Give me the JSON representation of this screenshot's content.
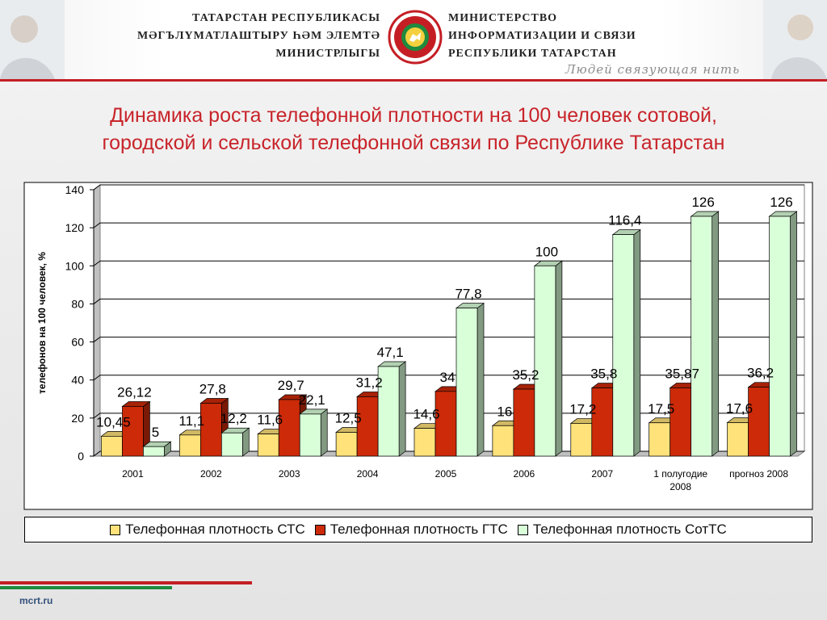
{
  "header": {
    "left_lines": [
      "ТАТАРСТАН РЕСПУБЛИКАСЫ",
      "МӘГЪЛҮМАТЛАШТЫРУ ҺӘМ  ЭЛЕМТӘ",
      "МИНИСТРЛЫГЫ"
    ],
    "right_lines": [
      "МИНИСТЕРСТВО",
      "ИНФОРМАТИЗАЦИИ И СВЯЗИ",
      "РЕСПУБЛИКИ ТАТАРСТАН"
    ],
    "slogan": "Людей связующая нить",
    "accent_color": "#c41e24"
  },
  "title": {
    "line1": "Динамика роста телефонной плотности на 100 человек сотовой,",
    "line2": "городской и сельской телефонной связи по Республике Татарстан"
  },
  "chart_data": {
    "type": "bar",
    "style": "3d-clustered",
    "categories": [
      "2001",
      "2002",
      "2003",
      "2004",
      "2005",
      "2006",
      "2007",
      "1 полугодие 2008",
      "прогноз 2008"
    ],
    "ylabel": "телефонов на 100 человек, %",
    "ylim": [
      0,
      140
    ],
    "yticks": [
      0,
      20,
      40,
      60,
      80,
      100,
      120,
      140
    ],
    "grid": true,
    "legend_position": "bottom",
    "series": [
      {
        "name": "Телефонная плотность СТС",
        "color": "#ffe27a",
        "values": [
          10.45,
          11.1,
          11.6,
          12.5,
          14.6,
          16,
          17.2,
          17.5,
          17.6
        ],
        "labels": [
          "10,45",
          "11,1",
          "11,6",
          "12,5",
          "14,6",
          "16",
          "17,2",
          "17,5",
          "17,6"
        ]
      },
      {
        "name": "Телефонная плотность ГТС",
        "color": "#cc2a08",
        "values": [
          26.12,
          27.8,
          29.7,
          31.2,
          34,
          35.2,
          35.8,
          35.87,
          36.2
        ],
        "labels": [
          "26,12",
          "27,8",
          "29,7",
          "31,2",
          "34",
          "35,2",
          "35,8",
          "35,87",
          "36,2"
        ]
      },
      {
        "name": "Телефонная плотность СотТС",
        "color": "#d9ffd9",
        "values": [
          5,
          12.2,
          22.1,
          47.1,
          77.8,
          100,
          116.4,
          126,
          126
        ],
        "labels": [
          "5",
          "12,2",
          "22,1",
          "47,1",
          "77,8",
          "100",
          "116,4",
          "126",
          "126"
        ]
      }
    ]
  },
  "footer": {
    "site": "mcrt.ru"
  }
}
